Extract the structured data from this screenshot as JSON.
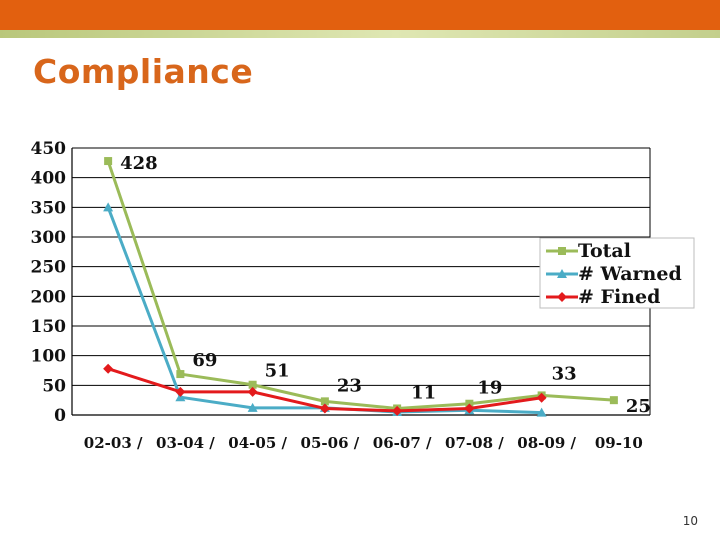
{
  "page": {
    "title": "Compliance",
    "page_number": "10"
  },
  "colors": {
    "header_band": "#e2600f",
    "title": "#d8661b",
    "total": "#9bbb59",
    "warned": "#4bacc6",
    "fined": "#e31a1c"
  },
  "chart_data": {
    "type": "line",
    "categories": [
      "02-03",
      "03-04",
      "04-05",
      "05-06",
      "06-07",
      "07-08",
      "08-09",
      "09-10"
    ],
    "x_tick_labels": [
      "02-03 /",
      "03-04 /",
      "04-05 /",
      "05-06 /",
      "06-07 /",
      "07-08 /",
      "08-09 /",
      "09-10"
    ],
    "series": [
      {
        "name": "Total",
        "values": [
          428,
          69,
          51,
          23,
          11,
          19,
          33,
          25
        ],
        "color": "#9bbb59",
        "marker": "square"
      },
      {
        "name": "# Warned",
        "values": [
          350,
          30,
          12,
          12,
          5,
          8,
          4,
          null
        ],
        "color": "#4bacc6",
        "marker": "triangle"
      },
      {
        "name": "# Fined",
        "values": [
          78,
          39,
          39,
          11,
          7,
          11,
          29,
          null
        ],
        "color": "#e31a1c",
        "marker": "diamond"
      }
    ],
    "data_labels": [
      {
        "series": "Total",
        "index": 0,
        "text": "428"
      },
      {
        "series": "Total",
        "index": 1,
        "text": "69"
      },
      {
        "series": "Total",
        "index": 2,
        "text": "51"
      },
      {
        "series": "Total",
        "index": 3,
        "text": "23"
      },
      {
        "series": "Total",
        "index": 4,
        "text": "11"
      },
      {
        "series": "Total",
        "index": 5,
        "text": "19"
      },
      {
        "series": "Total",
        "index": 6,
        "text": "33"
      },
      {
        "series": "Total",
        "index": 7,
        "text": "25"
      }
    ],
    "y_ticks": [
      0,
      50,
      100,
      150,
      200,
      250,
      300,
      350,
      400,
      450
    ],
    "ylim": [
      0,
      450
    ],
    "grid": true,
    "legend_position": "right"
  }
}
